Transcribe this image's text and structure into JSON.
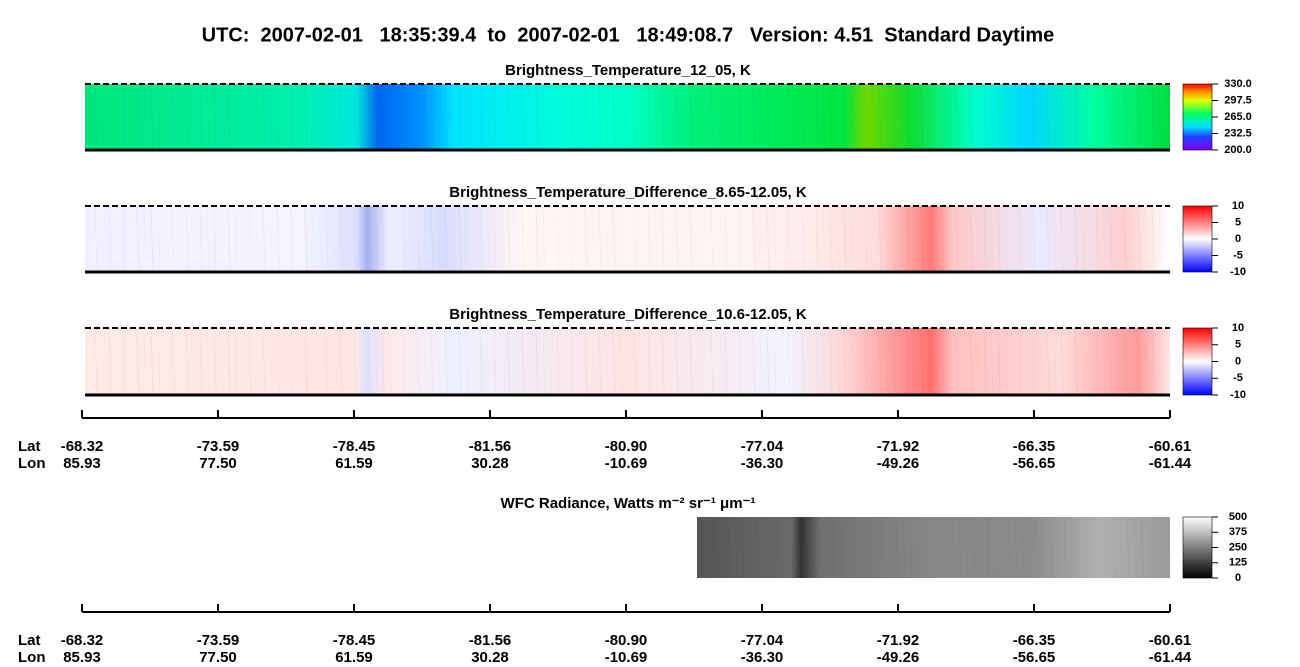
{
  "title": "UTC:  2007-02-01   18:35:39.4  to  2007-02-01   18:49:08.7   Version: 4.51  Standard Daytime",
  "chart_data": [
    {
      "type": "heatmap",
      "title": "Brightness_Temperature_12_05, K",
      "colormap": "rainbow",
      "clim": [
        200,
        330
      ],
      "cticks": [
        {
          "value": 200,
          "label": "200.0"
        },
        {
          "value": 232.5,
          "label": "232.5"
        },
        {
          "value": 265,
          "label": "265.0"
        },
        {
          "value": 297.5,
          "label": "297.5"
        },
        {
          "value": 330,
          "label": "330.0"
        }
      ]
    },
    {
      "type": "heatmap",
      "title": "Brightness_Temperature_Difference_8.65-12.05, K",
      "colormap": "bwr",
      "clim": [
        -10,
        10
      ],
      "cticks": [
        -10,
        -5,
        0,
        5,
        10
      ]
    },
    {
      "type": "heatmap",
      "title": "Brightness_Temperature_Difference_10.6-12.05, K",
      "colormap": "bwr-warm",
      "clim": [
        -10,
        10
      ],
      "cticks": [
        -10,
        -5,
        0,
        5,
        10
      ]
    },
    {
      "type": "heatmap",
      "title": "WFC Radiance, Watts m⁻² sr⁻¹ μm⁻¹",
      "colormap": "gray",
      "clim": [
        0,
        500
      ],
      "cticks": [
        0,
        125,
        250,
        375,
        500
      ]
    }
  ],
  "x_axis": {
    "row_labels": [
      "Lat",
      "Lon"
    ],
    "lat": [
      "-68.32",
      "-73.59",
      "-78.45",
      "-81.56",
      "-80.90",
      "-77.04",
      "-71.92",
      "-66.35",
      "-60.61"
    ],
    "lon": [
      "85.93",
      "77.50",
      "61.59",
      "30.28",
      "-10.69",
      "-36.30",
      "-49.26",
      "-56.65",
      "-61.44"
    ]
  }
}
